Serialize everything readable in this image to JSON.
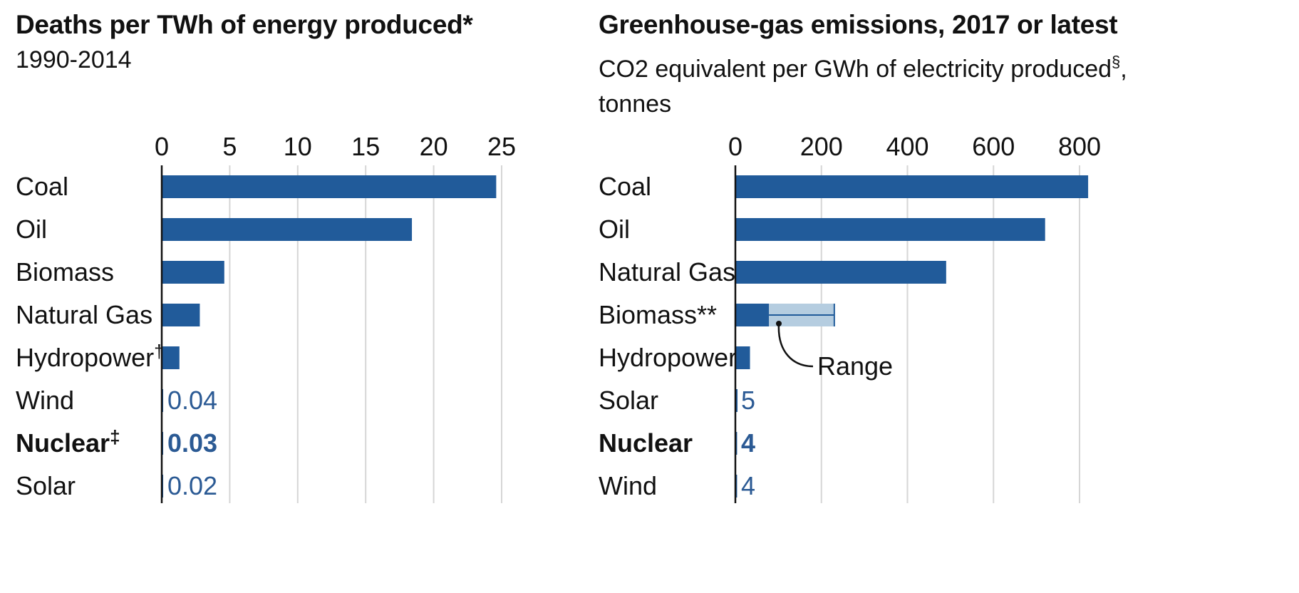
{
  "colors": {
    "bar": "#215b9a",
    "range": "#b5cde0",
    "grid": "#d6d6d6",
    "axis": "#111111",
    "label": "#2b5a94"
  },
  "chart_data": [
    {
      "type": "bar",
      "orientation": "horizontal",
      "title": "Deaths per TWh of energy produced*",
      "subtitle": "1990-2014",
      "categories": [
        "Coal",
        "Oil",
        "Biomass",
        "Natural Gas",
        "Hydropower",
        "Wind",
        "Nuclear",
        "Solar"
      ],
      "category_suffix": [
        "",
        "",
        "",
        "",
        "†",
        "",
        "‡",
        ""
      ],
      "bold_categories": [
        "Nuclear"
      ],
      "values": [
        24.6,
        18.4,
        4.6,
        2.8,
        1.3,
        0.04,
        0.03,
        0.02
      ],
      "value_labels": [
        "",
        "",
        "",
        "",
        "",
        "0.04",
        "0.03",
        "0.02"
      ],
      "xlim": [
        0,
        25
      ],
      "xticks": [
        0,
        5,
        10,
        15,
        20,
        25
      ],
      "xtick_labels": [
        "0",
        "5",
        "10",
        "15",
        "20",
        "25"
      ],
      "grid": true
    },
    {
      "type": "bar",
      "orientation": "horizontal",
      "title": "Greenhouse-gas emissions, 2017 or latest",
      "subtitle_line1": "CO2 equivalent per GWh of electricity produced",
      "subtitle_sup": "§",
      "subtitle_comma": ",",
      "subtitle_line2": "tonnes",
      "categories": [
        "Coal",
        "Oil",
        "Natural Gas",
        "Biomass**",
        "Hydropower",
        "Solar",
        "Nuclear",
        "Wind"
      ],
      "bold_categories": [
        "Nuclear"
      ],
      "values": [
        820,
        720,
        490,
        78,
        34,
        5,
        4,
        4
      ],
      "value_labels": [
        "",
        "",
        "",
        "",
        "",
        "5",
        "4",
        "4"
      ],
      "ranges": [
        {
          "category": "Biomass**",
          "low": 78,
          "high": 230
        }
      ],
      "annotation": "Range",
      "xlim": [
        0,
        800
      ],
      "xticks": [
        0,
        200,
        400,
        600,
        800
      ],
      "xtick_labels": [
        "0",
        "200",
        "400",
        "600",
        "800"
      ],
      "grid": true
    }
  ]
}
